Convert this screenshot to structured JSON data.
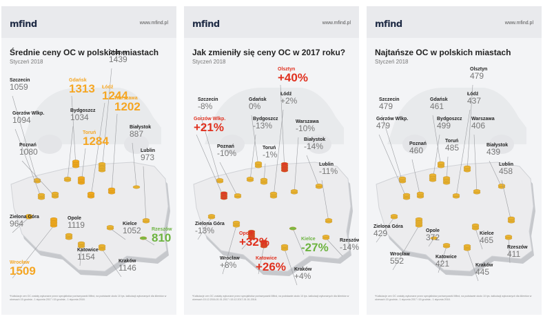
{
  "brand": {
    "logo": "mfind",
    "url": "www.mfind.pl"
  },
  "panels": [
    {
      "title": "Średnie ceny OC w polskich miastach",
      "subtitle": "Styczeń 2018",
      "note": "*Kalkulacje cen OC zostały wykonane przez specjalistów porównywarki Mfind, na podstawie około 10 tys. kalkulacji wykonanych dla klientów w okresach 15 grudnia - 1 stycznia 2017 i 15 grudnia - 1 stycznia 2018."
    },
    {
      "title": "Jak zmieniły się ceny OC w 2017 roku?",
      "subtitle": "Styczeń 2018",
      "note": "*Kalkulacje cen OC zostały wykonane przez specjalistów porównywarki Mfind, na podstawie około 10 tys. kalkulacji wykonanych dla klientów w okresach 15.12.2016-01.01.2017 i 15.12.2017-01.01.2018."
    },
    {
      "title": "Najtańsze OC w polskich miastach",
      "subtitle": "Styczeń 2018",
      "note": "*Kalkulacje cen OC zostały wykonane przez specjalistów porównywarki Mfind, na podstawie około 10 tys. kalkulacji wykonanych dla klientów w okresach 15 grudnia - 1 stycznia 2017 i 15 grudnia - 1 stycznia 2018."
    }
  ],
  "colors": {
    "highlight_orange": "#f5a623",
    "highlight_red": "#e0301e",
    "highlight_green": "#6cb33f",
    "value_grey": "#777777"
  },
  "chart_data": [
    {
      "type": "bar",
      "title": "Średnie ceny OC w polskich miastach",
      "subtitle": "Styczeń 2018",
      "categories": [
        "Olsztyn",
        "Szczecin",
        "Gdańsk",
        "Łódź",
        "Bydgoszcz",
        "Warszawa",
        "Gorzów Wlkp.",
        "Toruń",
        "Poznań",
        "Białystok",
        "Lublin",
        "Zielona Góra",
        "Opole",
        "Kielce",
        "Rzeszów",
        "Wrocław",
        "Katowice",
        "Kraków"
      ],
      "values": [
        1439,
        1059,
        1313,
        1244,
        1034,
        1202,
        1094,
        1284,
        1080,
        887,
        973,
        964,
        1119,
        1052,
        810,
        1509,
        1154,
        1146
      ],
      "labels": [
        "1439",
        "1059",
        "1313",
        "1244",
        "1034",
        "1202",
        "1094",
        "1284",
        "1080",
        "887",
        "973",
        "964",
        "1119",
        "1052",
        "810",
        "1509",
        "1154",
        "1146"
      ],
      "highlight": [
        "",
        "",
        "orange",
        "orange",
        "",
        "orange",
        "",
        "orange",
        "",
        "",
        "",
        "",
        "",
        "",
        "green",
        "orange",
        "",
        ""
      ]
    },
    {
      "type": "bar",
      "title": "Jak zmieniły się ceny OC w 2017 roku?",
      "subtitle": "Styczeń 2018",
      "categories": [
        "Olsztyn",
        "Szczecin",
        "Gdańsk",
        "Łódź",
        "Gorzów Wlkp.",
        "Bydgoszcz",
        "Warszawa",
        "Poznań",
        "Toruń",
        "Białystok",
        "Lublin",
        "Zielona Góra",
        "Opole",
        "Kielce",
        "Rzeszów",
        "Wrocław",
        "Katowice",
        "Kraków"
      ],
      "values": [
        40,
        -8,
        0,
        2,
        21,
        -13,
        -10,
        -10,
        -1,
        -14,
        -11,
        -13,
        32,
        -27,
        -14,
        8,
        26,
        4
      ],
      "labels": [
        "+40%",
        "-8%",
        "0%",
        "+2%",
        "+21%",
        "-13%",
        "-10%",
        "-10%",
        "-1%",
        "-14%",
        "-11%",
        "-13%",
        "+32%",
        "-27%",
        "-14%",
        "+8%",
        "+26%",
        "+4%"
      ],
      "highlight": [
        "red",
        "",
        "",
        "",
        "red",
        "",
        "",
        "",
        "",
        "",
        "",
        "",
        "red",
        "green",
        "",
        "",
        "red",
        ""
      ]
    },
    {
      "type": "bar",
      "title": "Najtańsze OC w polskich miastach",
      "subtitle": "Styczeń 2018",
      "categories": [
        "Olsztyn",
        "Szczecin",
        "Gdańsk",
        "Łódź",
        "Gorzów Wlkp.",
        "Bydgoszcz",
        "Warszawa",
        "Poznań",
        "Toruń",
        "Białystok",
        "Lublin",
        "Zielona Góra",
        "Opole",
        "Kielce",
        "Rzeszów",
        "Wrocław",
        "Katowice",
        "Kraków"
      ],
      "values": [
        479,
        479,
        461,
        437,
        479,
        499,
        406,
        460,
        485,
        439,
        458,
        429,
        372,
        465,
        411,
        552,
        421,
        445
      ],
      "labels": [
        "479",
        "479",
        "461",
        "437",
        "479",
        "499",
        "406",
        "460",
        "485",
        "439",
        "458",
        "429",
        "372",
        "465",
        "411",
        "552",
        "421",
        "445"
      ],
      "highlight": [
        "",
        "",
        "",
        "",
        "",
        "",
        "",
        "",
        "",
        "",
        "",
        "",
        "",
        "",
        "",
        "",
        "",
        ""
      ]
    }
  ]
}
